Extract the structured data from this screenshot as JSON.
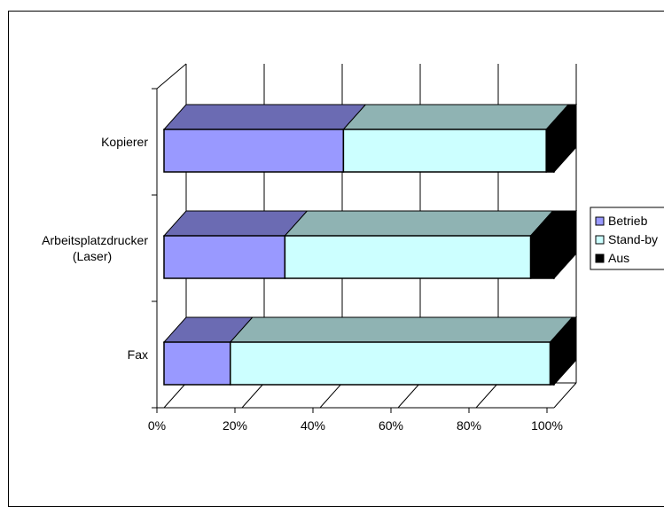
{
  "chart_data": {
    "type": "bar",
    "orientation": "horizontal",
    "stacked": "percent",
    "categories": [
      "Kopierer",
      [
        "Arbeitsplatzdrucker",
        "(Laser)"
      ],
      "Fax"
    ],
    "series": [
      {
        "name": "Betrieb",
        "values": [
          46,
          31,
          17
        ],
        "color": "#9999ff",
        "top": "#6b6bb3",
        "side": "#4d4d80"
      },
      {
        "name": "Stand-by",
        "values": [
          52,
          63,
          82
        ],
        "color": "#ccffff",
        "top": "#8fb3b3",
        "side": "#668080"
      },
      {
        "name": "Aus",
        "values": [
          2,
          6,
          1
        ],
        "color": "#000000",
        "top": "#000000",
        "side": "#000000"
      }
    ],
    "xticks": [
      "0%",
      "20%",
      "40%",
      "60%",
      "80%",
      "100%"
    ],
    "xlim": [
      0,
      100
    ],
    "grid": true,
    "legend": "right"
  }
}
